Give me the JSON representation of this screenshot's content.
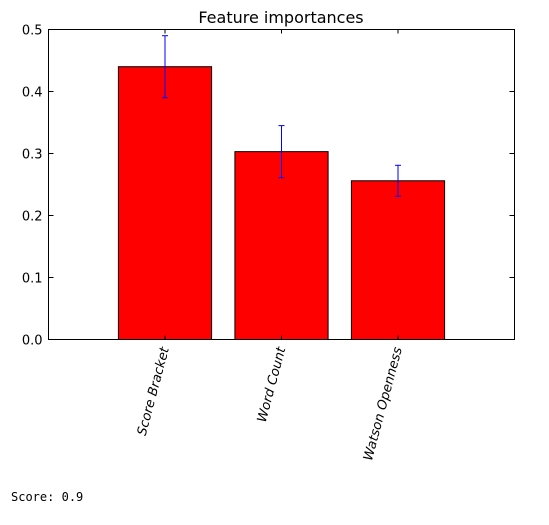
{
  "chart_data": {
    "type": "bar",
    "title": "Feature importances",
    "xlabel": "",
    "ylabel": "",
    "categories": [
      "Score Bracket",
      "Word Count",
      "Watson Openness"
    ],
    "values": [
      0.44,
      0.303,
      0.256
    ],
    "errors": [
      0.05,
      0.042,
      0.025
    ],
    "ylim": [
      0,
      0.5
    ],
    "yticks": [
      0.0,
      0.1,
      0.2,
      0.3,
      0.4,
      0.5
    ],
    "ytick_labels": [
      "0.0",
      "0.1",
      "0.2",
      "0.3",
      "0.4",
      "0.5"
    ],
    "xlim": [
      -1,
      3
    ],
    "grid": false,
    "legend": "none",
    "bar_color": "#ff0000",
    "error_color": "#0000ff"
  },
  "output": {
    "score_label": "Score:",
    "score_value": "0.9"
  }
}
